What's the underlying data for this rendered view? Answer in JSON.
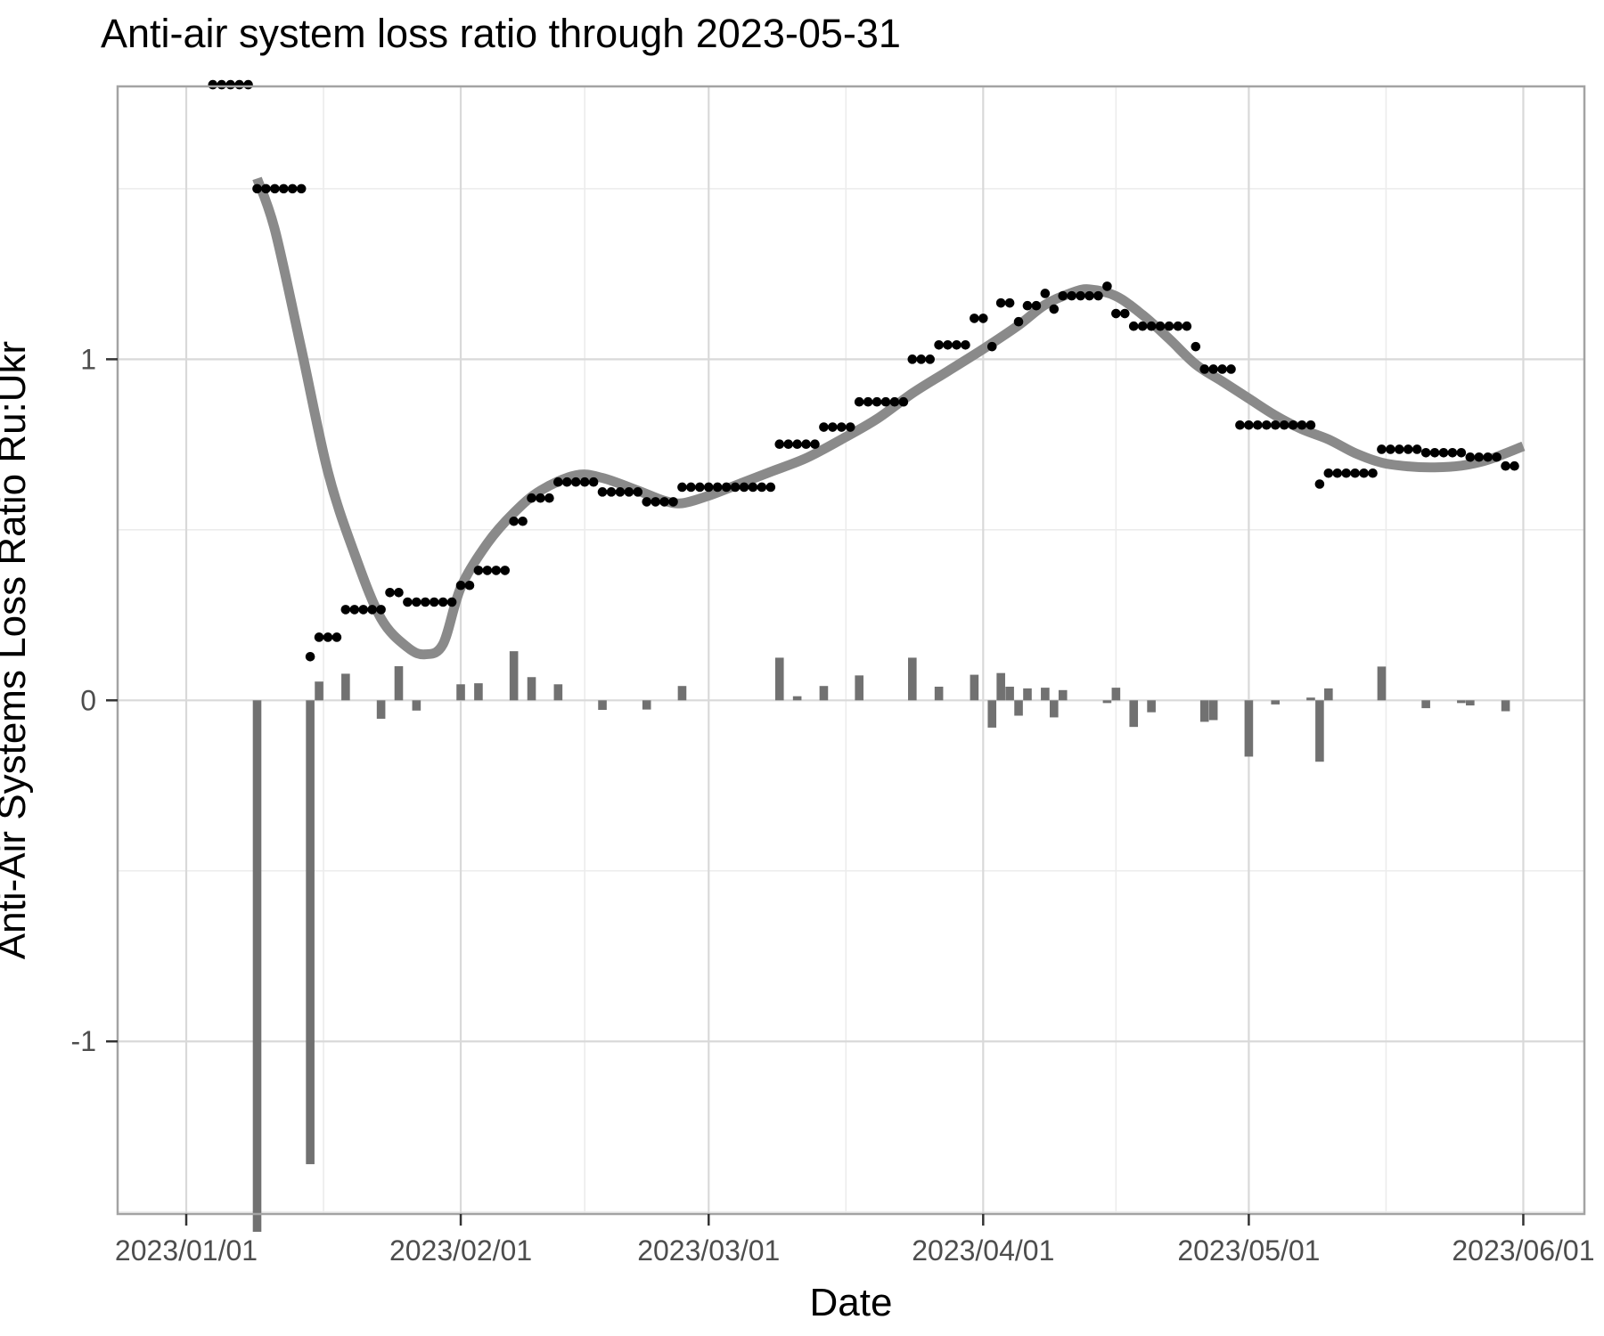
{
  "title": "Anti-air system loss ratio through 2023-05-31",
  "axes": {
    "x": {
      "title": "Date",
      "ticks": [
        {
          "label": "2023/01/01",
          "date": "2023-01-01"
        },
        {
          "label": "2023/02/01",
          "date": "2023-02-01"
        },
        {
          "label": "2023/03/01",
          "date": "2023-03-01"
        },
        {
          "label": "2023/04/01",
          "date": "2023-04-01"
        },
        {
          "label": "2023/05/01",
          "date": "2023-05-01"
        },
        {
          "label": "2023/06/01",
          "date": "2023-06-01"
        }
      ],
      "minor_day_offsets": [
        15.5,
        45,
        74.5,
        105,
        135.5
      ]
    },
    "y": {
      "ticks": [
        {
          "label": "1",
          "value": 1
        },
        {
          "label": "0",
          "value": 0
        },
        {
          "label": "-1",
          "value": -1
        }
      ],
      "minor_values": [
        1.5,
        0.5,
        -0.5,
        -1.5
      ]
    }
  },
  "labels": {
    "x_title": "Date",
    "y_title": "Anti-Air Systems Loss Ratio Ru:Ukr"
  },
  "colors": {
    "background": "#ffffff",
    "panel_border": "#a3a3a3",
    "grid_major": "#d9d9d9",
    "grid_minor": "#ececec",
    "tick_mark": "#333333",
    "tick_label": "#4d4d4d",
    "bars": "#717171",
    "smooth_line": "#8a8a8a",
    "dots": "#000000"
  },
  "chart_data": {
    "type": "mixed",
    "title": "Anti-air system loss ratio through 2023-05-31",
    "xlabel": "Date",
    "ylabel": "Anti-Air Systems Loss Ratio Ru:Ukr",
    "x_range_days_from_2023_01_01": [
      -7.75,
      157.9
    ],
    "ylim": [
      -1.506,
      1.8
    ],
    "grid": true,
    "legend": false,
    "series": [
      {
        "name": "rolling-7day-loss-ratio-dots",
        "type": "scatter",
        "note": "daily black dots, values constant over runs; first run clipped at top edge",
        "runs": [
          {
            "from": "2023-01-04",
            "to": "2023-01-08",
            "value": 1.805
          },
          {
            "from": "2023-01-09",
            "to": "2023-01-14",
            "value": 1.5
          },
          {
            "from": "2023-01-15",
            "to": "2023-01-15",
            "value": 0.128
          },
          {
            "from": "2023-01-16",
            "to": "2023-01-18",
            "value": 0.185
          },
          {
            "from": "2023-01-19",
            "to": "2023-01-23",
            "value": 0.266
          },
          {
            "from": "2023-01-24",
            "to": "2023-01-25",
            "value": 0.316
          },
          {
            "from": "2023-01-26",
            "to": "2023-01-31",
            "value": 0.288
          },
          {
            "from": "2023-02-01",
            "to": "2023-02-02",
            "value": 0.337
          },
          {
            "from": "2023-02-03",
            "to": "2023-02-06",
            "value": 0.381
          },
          {
            "from": "2023-02-07",
            "to": "2023-02-08",
            "value": 0.525
          },
          {
            "from": "2023-02-09",
            "to": "2023-02-11",
            "value": 0.593
          },
          {
            "from": "2023-02-12",
            "to": "2023-02-16",
            "value": 0.64
          },
          {
            "from": "2023-02-17",
            "to": "2023-02-21",
            "value": 0.611
          },
          {
            "from": "2023-02-22",
            "to": "2023-02-25",
            "value": 0.582
          },
          {
            "from": "2023-02-26",
            "to": "2023-03-08",
            "value": 0.625
          },
          {
            "from": "2023-03-09",
            "to": "2023-03-13",
            "value": 0.751
          },
          {
            "from": "2023-03-14",
            "to": "2023-03-17",
            "value": 0.801
          },
          {
            "from": "2023-03-18",
            "to": "2023-03-23",
            "value": 0.875
          },
          {
            "from": "2023-03-24",
            "to": "2023-03-26",
            "value": 1.0
          },
          {
            "from": "2023-03-27",
            "to": "2023-03-30",
            "value": 1.042
          },
          {
            "from": "2023-03-31",
            "to": "2023-04-01",
            "value": 1.12
          },
          {
            "from": "2023-04-02",
            "to": "2023-04-02",
            "value": 1.037
          },
          {
            "from": "2023-04-03",
            "to": "2023-04-04",
            "value": 1.165
          },
          {
            "from": "2023-04-05",
            "to": "2023-04-05",
            "value": 1.11
          },
          {
            "from": "2023-04-06",
            "to": "2023-04-07",
            "value": 1.157
          },
          {
            "from": "2023-04-08",
            "to": "2023-04-08",
            "value": 1.193
          },
          {
            "from": "2023-04-09",
            "to": "2023-04-09",
            "value": 1.147
          },
          {
            "from": "2023-04-10",
            "to": "2023-04-14",
            "value": 1.186
          },
          {
            "from": "2023-04-15",
            "to": "2023-04-15",
            "value": 1.214
          },
          {
            "from": "2023-04-16",
            "to": "2023-04-17",
            "value": 1.134
          },
          {
            "from": "2023-04-18",
            "to": "2023-04-24",
            "value": 1.097
          },
          {
            "from": "2023-04-25",
            "to": "2023-04-25",
            "value": 1.037
          },
          {
            "from": "2023-04-26",
            "to": "2023-04-29",
            "value": 0.971
          },
          {
            "from": "2023-04-30",
            "to": "2023-05-08",
            "value": 0.807
          },
          {
            "from": "2023-05-09",
            "to": "2023-05-09",
            "value": 0.634
          },
          {
            "from": "2023-05-10",
            "to": "2023-05-15",
            "value": 0.666
          },
          {
            "from": "2023-05-16",
            "to": "2023-05-20",
            "value": 0.736
          },
          {
            "from": "2023-05-21",
            "to": "2023-05-25",
            "value": 0.726
          },
          {
            "from": "2023-05-26",
            "to": "2023-05-29",
            "value": 0.713
          },
          {
            "from": "2023-05-30",
            "to": "2023-05-31",
            "value": 0.687
          }
        ]
      },
      {
        "name": "daily-ratio-change-bars",
        "type": "bar",
        "note": "gray bars from zero line; 2023-01-09 bar extends past bottom of panel",
        "points": [
          {
            "date": "2023-01-09",
            "value": -1.56
          },
          {
            "date": "2023-01-15",
            "value": -1.36
          },
          {
            "date": "2023-01-16",
            "value": 0.055
          },
          {
            "date": "2023-01-19",
            "value": 0.078
          },
          {
            "date": "2023-01-23",
            "value": -0.054
          },
          {
            "date": "2023-01-25",
            "value": 0.1
          },
          {
            "date": "2023-01-27",
            "value": -0.03
          },
          {
            "date": "2023-02-01",
            "value": 0.047
          },
          {
            "date": "2023-02-03",
            "value": 0.05
          },
          {
            "date": "2023-02-07",
            "value": 0.144
          },
          {
            "date": "2023-02-09",
            "value": 0.068
          },
          {
            "date": "2023-02-12",
            "value": 0.047
          },
          {
            "date": "2023-02-17",
            "value": -0.028
          },
          {
            "date": "2023-02-22",
            "value": -0.027
          },
          {
            "date": "2023-02-26",
            "value": 0.042
          },
          {
            "date": "2023-03-09",
            "value": 0.125
          },
          {
            "date": "2023-03-11",
            "value": 0.012
          },
          {
            "date": "2023-03-14",
            "value": 0.042
          },
          {
            "date": "2023-03-18",
            "value": 0.073
          },
          {
            "date": "2023-03-24",
            "value": 0.125
          },
          {
            "date": "2023-03-27",
            "value": 0.04
          },
          {
            "date": "2023-03-31",
            "value": 0.075
          },
          {
            "date": "2023-04-02",
            "value": -0.08
          },
          {
            "date": "2023-04-03",
            "value": 0.08
          },
          {
            "date": "2023-04-04",
            "value": 0.04
          },
          {
            "date": "2023-04-05",
            "value": -0.045
          },
          {
            "date": "2023-04-06",
            "value": 0.035
          },
          {
            "date": "2023-04-08",
            "value": 0.037
          },
          {
            "date": "2023-04-09",
            "value": -0.05
          },
          {
            "date": "2023-04-10",
            "value": 0.03
          },
          {
            "date": "2023-04-15",
            "value": -0.008
          },
          {
            "date": "2023-04-16",
            "value": 0.037
          },
          {
            "date": "2023-04-18",
            "value": -0.078
          },
          {
            "date": "2023-04-20",
            "value": -0.035
          },
          {
            "date": "2023-04-26",
            "value": -0.063
          },
          {
            "date": "2023-04-27",
            "value": -0.058
          },
          {
            "date": "2023-05-01",
            "value": -0.165
          },
          {
            "date": "2023-05-04",
            "value": -0.012
          },
          {
            "date": "2023-05-08",
            "value": 0.008
          },
          {
            "date": "2023-05-09",
            "value": -0.18
          },
          {
            "date": "2023-05-10",
            "value": 0.035
          },
          {
            "date": "2023-05-16",
            "value": 0.099
          },
          {
            "date": "2023-05-21",
            "value": -0.023
          },
          {
            "date": "2023-05-25",
            "value": -0.008
          },
          {
            "date": "2023-05-26",
            "value": -0.015
          },
          {
            "date": "2023-05-30",
            "value": -0.032
          }
        ]
      },
      {
        "name": "loess-smooth-curve",
        "type": "line",
        "note": "thick gray smooth curve; points are [day offset from 2023-01-01, value]",
        "points": [
          [
            8,
            1.53
          ],
          [
            10,
            1.38
          ],
          [
            13,
            1.03
          ],
          [
            16,
            0.67
          ],
          [
            19,
            0.43
          ],
          [
            22,
            0.24
          ],
          [
            25,
            0.155
          ],
          [
            27,
            0.135
          ],
          [
            29,
            0.165
          ],
          [
            31,
            0.33
          ],
          [
            34,
            0.46
          ],
          [
            37,
            0.55
          ],
          [
            40,
            0.615
          ],
          [
            44,
            0.66
          ],
          [
            47,
            0.652
          ],
          [
            51,
            0.615
          ],
          [
            54,
            0.585
          ],
          [
            56,
            0.578
          ],
          [
            59,
            0.6
          ],
          [
            63,
            0.64
          ],
          [
            66,
            0.67
          ],
          [
            70,
            0.71
          ],
          [
            74,
            0.765
          ],
          [
            78,
            0.825
          ],
          [
            82,
            0.9
          ],
          [
            86,
            0.965
          ],
          [
            90,
            1.03
          ],
          [
            94,
            1.1
          ],
          [
            97,
            1.16
          ],
          [
            100,
            1.195
          ],
          [
            102,
            1.205
          ],
          [
            105,
            1.185
          ],
          [
            108,
            1.13
          ],
          [
            111,
            1.06
          ],
          [
            114,
            0.985
          ],
          [
            117,
            0.935
          ],
          [
            120,
            0.885
          ],
          [
            123,
            0.835
          ],
          [
            126,
            0.795
          ],
          [
            129,
            0.765
          ],
          [
            132,
            0.725
          ],
          [
            135,
            0.697
          ],
          [
            138,
            0.686
          ],
          [
            141,
            0.683
          ],
          [
            144,
            0.688
          ],
          [
            147,
            0.705
          ],
          [
            151,
            0.745
          ]
        ]
      }
    ]
  }
}
